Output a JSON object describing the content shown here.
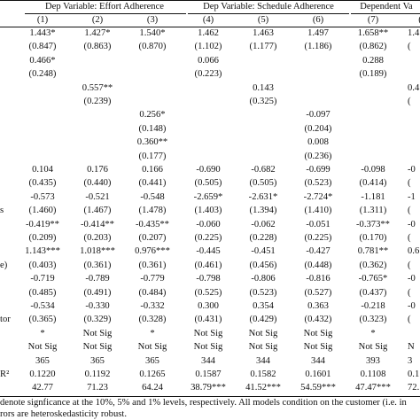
{
  "headers": [
    "Dep Variable: Effort Adherence",
    "Dep Variable: Schedule Adherence",
    "Dependent Va"
  ],
  "col_numbers": [
    "(1)",
    "(2)",
    "(3)",
    "(4)",
    "(5)",
    "(6)",
    "(7)",
    "("
  ],
  "row_labels": [
    "",
    "",
    "",
    "",
    "",
    "",
    "",
    "",
    "",
    "",
    "",
    "",
    "",
    "s",
    "",
    "",
    "",
    "e)",
    "",
    "",
    "",
    "tor",
    "",
    "",
    "",
    "R²",
    ""
  ],
  "rows": [
    [
      "1.443*",
      "1.427*",
      "1.540*",
      "1.462",
      "1.463",
      "1.497",
      "1.658**",
      "1.4"
    ],
    [
      "(0.847)",
      "(0.863)",
      "(0.870)",
      "(1.102)",
      "(1.177)",
      "(1.186)",
      "(0.862)",
      "("
    ],
    [
      "0.466*",
      "",
      "",
      "0.066",
      "",
      "",
      "0.288",
      ""
    ],
    [
      "(0.248)",
      "",
      "",
      "(0.223)",
      "",
      "",
      "(0.189)",
      ""
    ],
    [
      "",
      "0.557**",
      "",
      "",
      "0.143",
      "",
      "",
      "0.4"
    ],
    [
      "",
      "(0.239)",
      "",
      "",
      "(0.325)",
      "",
      "",
      "("
    ],
    [
      "",
      "",
      "0.256*",
      "",
      "",
      "-0.097",
      "",
      ""
    ],
    [
      "",
      "",
      "(0.148)",
      "",
      "",
      "(0.204)",
      "",
      ""
    ],
    [
      "",
      "",
      "0.360**",
      "",
      "",
      "0.008",
      "",
      ""
    ],
    [
      "",
      "",
      "(0.177)",
      "",
      "",
      "(0.236)",
      "",
      ""
    ],
    [
      "0.104",
      "0.176",
      "0.166",
      "-0.690",
      "-0.682",
      "-0.699",
      "-0.098",
      "-0"
    ],
    [
      "(0.435)",
      "(0.440)",
      "(0.441)",
      "(0.505)",
      "(0.505)",
      "(0.523)",
      "(0.414)",
      "("
    ],
    [
      "-0.573",
      "-0.521",
      "-0.548",
      "-2.659*",
      "-2.631*",
      "-2.724*",
      "-1.181",
      "-1"
    ],
    [
      "(1.460)",
      "(1.467)",
      "(1.478)",
      "(1.403)",
      "(1.394)",
      "(1.410)",
      "(1.311)",
      "("
    ],
    [
      "-0.419**",
      "-0.414**",
      "-0.435**",
      "-0.060",
      "-0.062",
      "-0.051",
      "-0.373**",
      "-0"
    ],
    [
      "(0.209)",
      "(0.203)",
      "(0.207)",
      "(0.225)",
      "(0.228)",
      "(0.225)",
      "(0.170)",
      "("
    ],
    [
      "1.143***",
      "1.018***",
      "0.976***",
      "-0.445",
      "-0.451",
      "-0.427",
      "0.781**",
      "0.6"
    ],
    [
      "(0.403)",
      "(0.361)",
      "(0.361)",
      "(0.461)",
      "(0.456)",
      "(0.448)",
      "(0.362)",
      "("
    ],
    [
      "-0.719",
      "-0.789",
      "-0.779",
      "-0.798",
      "-0.806",
      "-0.816",
      "-0.765*",
      "-0"
    ],
    [
      "(0.485)",
      "(0.491)",
      "(0.484)",
      "(0.525)",
      "(0.523)",
      "(0.527)",
      "(0.437)",
      "("
    ],
    [
      "-0.534",
      "-0.330",
      "-0.332",
      "0.300",
      "0.354",
      "0.363",
      "-0.218",
      "-0"
    ],
    [
      "(0.365)",
      "(0.329)",
      "(0.328)",
      "(0.431)",
      "(0.429)",
      "(0.432)",
      "(0.323)",
      "("
    ],
    [
      "*",
      "Not Sig",
      "*",
      "Not Sig",
      "Not Sig",
      "Not Sig",
      "*",
      ""
    ],
    [
      "Not Sig",
      "Not Sig",
      "Not Sig",
      "Not Sig",
      "Not Sig",
      "Not Sig",
      "Not Sig",
      "N"
    ],
    [
      "365",
      "365",
      "365",
      "344",
      "344",
      "344",
      "393",
      "3"
    ],
    [
      "0.1220",
      "0.1192",
      "0.1265",
      "0.1587",
      "0.1582",
      "0.1601",
      "0.1108",
      "0.1"
    ],
    [
      "42.77",
      "71.23",
      "64.24",
      "38.79***",
      "41.52***",
      "54.59***",
      "47.47***",
      "72."
    ]
  ],
  "notes": [
    "denote signficance at the 10%, 5% and 1% levels, respectively. All models condition on the customer (i.e. in",
    "rors are heteroskedasticity robust."
  ]
}
